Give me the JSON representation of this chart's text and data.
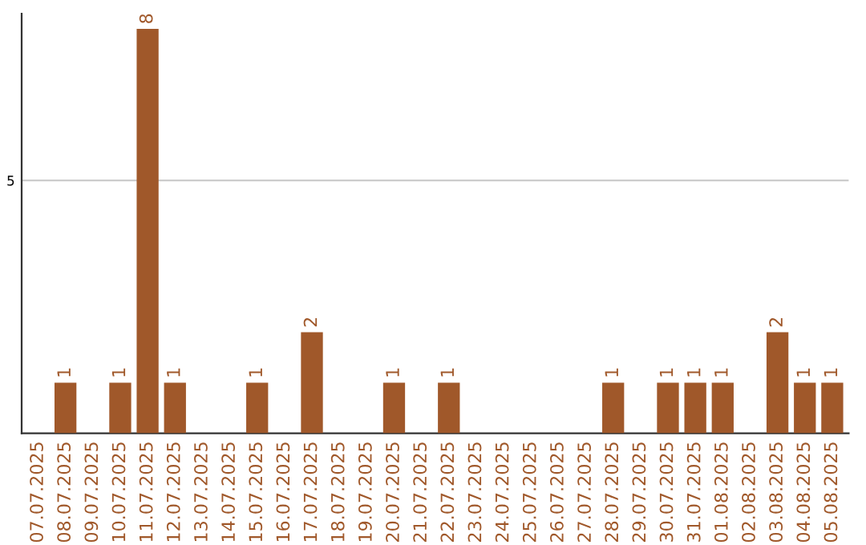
{
  "chart_data": {
    "type": "bar",
    "categories": [
      "07.07.2025",
      "08.07.2025",
      "09.07.2025",
      "10.07.2025",
      "11.07.2025",
      "12.07.2025",
      "13.07.2025",
      "14.07.2025",
      "15.07.2025",
      "16.07.2025",
      "17.07.2025",
      "18.07.2025",
      "19.07.2025",
      "20.07.2025",
      "21.07.2025",
      "22.07.2025",
      "23.07.2025",
      "24.07.2025",
      "25.07.2025",
      "26.07.2025",
      "27.07.2025",
      "28.07.2025",
      "29.07.2025",
      "30.07.2025",
      "31.07.2025",
      "01.08.2025",
      "02.08.2025",
      "03.08.2025",
      "04.08.2025",
      "05.08.2025"
    ],
    "values": [
      0,
      1,
      0,
      1,
      8,
      1,
      0,
      0,
      1,
      0,
      2,
      0,
      0,
      1,
      0,
      1,
      0,
      0,
      0,
      0,
      0,
      1,
      0,
      1,
      1,
      1,
      0,
      2,
      1,
      1
    ],
    "value_labels": [
      null,
      "1",
      null,
      "1",
      "8",
      "1",
      null,
      null,
      "1",
      null,
      "2",
      null,
      null,
      "1",
      null,
      "1",
      null,
      null,
      null,
      null,
      null,
      "1",
      null,
      "1",
      "1",
      "1",
      null,
      "2",
      "1",
      "1"
    ],
    "color": "#a0582a",
    "ylim": [
      0,
      8.3
    ],
    "yticks": [
      5
    ],
    "grid": "y"
  }
}
